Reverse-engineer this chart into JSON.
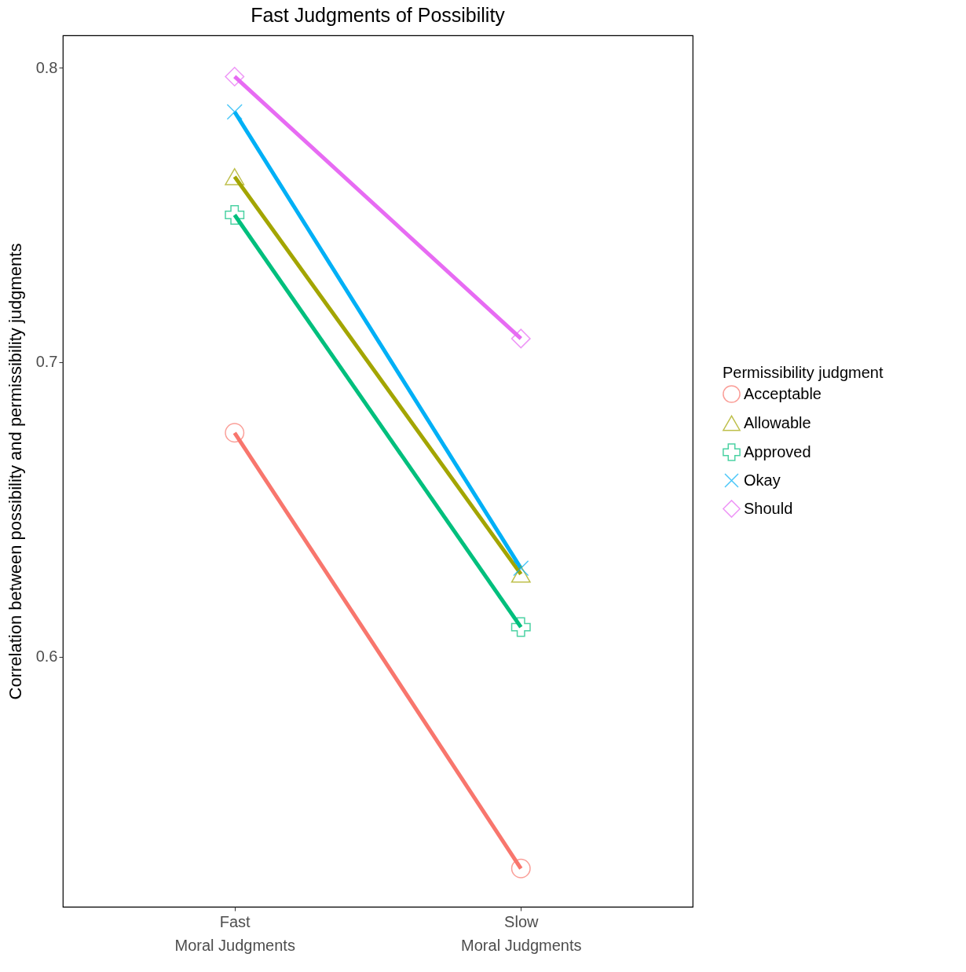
{
  "chart_data": {
    "type": "line",
    "title": "Fast Judgments of Possibility",
    "ylabel": "Correlation between possibility and permissibility judgments",
    "legend_title": "Permissibility judgment",
    "legend": "right",
    "grid": false,
    "categories": [
      "Fast\nMoral Judgments",
      "Slow\nMoral Judgments"
    ],
    "ylim": [
      0.515,
      0.811
    ],
    "yticks": [
      0.6,
      0.7,
      0.8
    ],
    "series": [
      {
        "name": "Acceptable",
        "color": "#f8766d",
        "marker": "circle",
        "values": [
          0.676,
          0.528
        ]
      },
      {
        "name": "Allowable",
        "color": "#a3a500",
        "marker": "triangle",
        "values": [
          0.763,
          0.628
        ]
      },
      {
        "name": "Approved",
        "color": "#00bf7d",
        "marker": "cross",
        "values": [
          0.75,
          0.61
        ]
      },
      {
        "name": "Okay",
        "color": "#00b0f6",
        "marker": "x",
        "values": [
          0.785,
          0.63
        ]
      },
      {
        "name": "Should",
        "color": "#e76bf3",
        "marker": "diamond",
        "values": [
          0.797,
          0.708
        ]
      }
    ]
  }
}
